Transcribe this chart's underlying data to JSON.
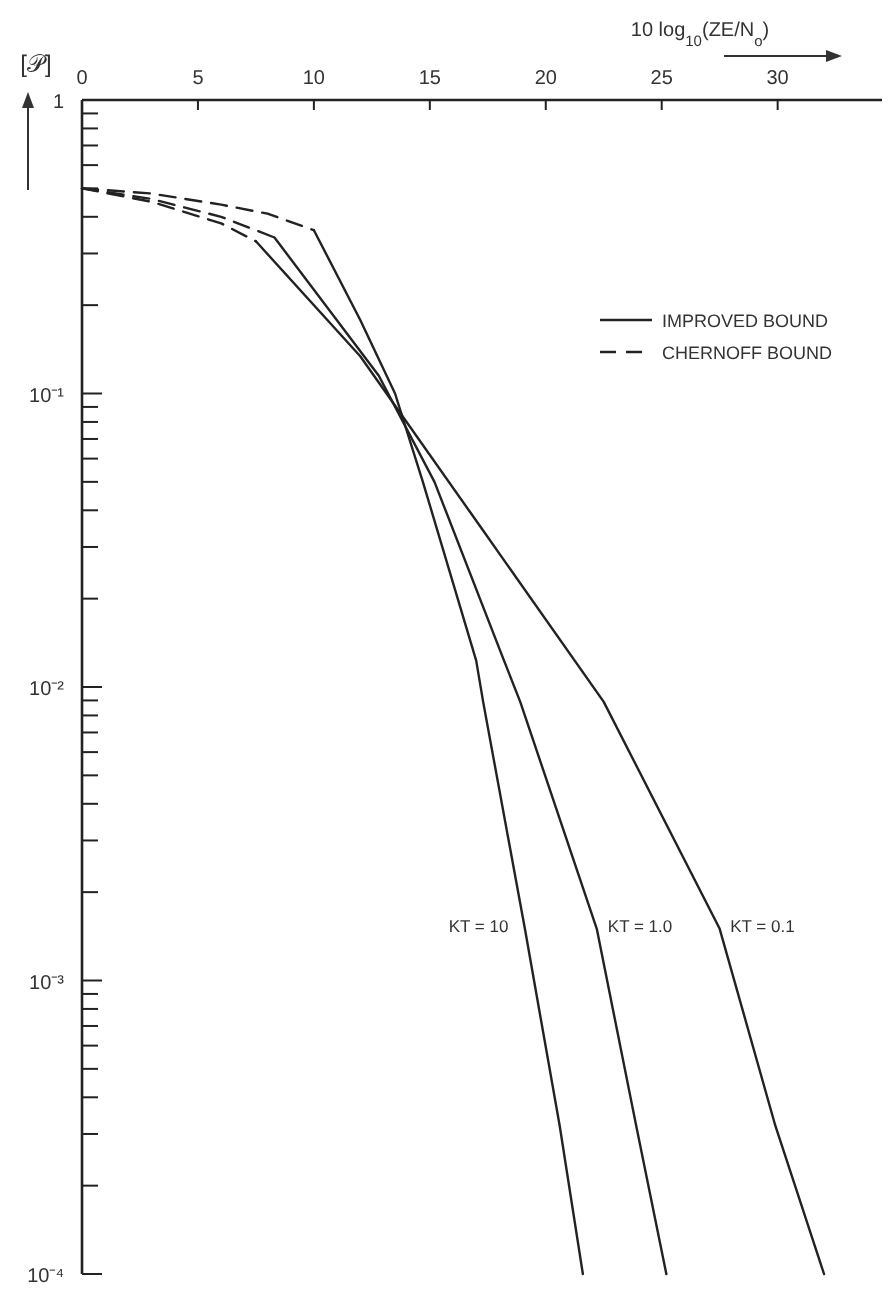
{
  "chart_data": {
    "type": "line",
    "xlabel": "10 log$_{10}$(ZE/N$_{o}$)",
    "ylabel": "[𝒫]",
    "log": "y",
    "xlim": [
      0,
      34.5
    ],
    "xticks": [
      0,
      5,
      10,
      15,
      20,
      25,
      30
    ],
    "ylim": [
      0.0001,
      1
    ],
    "yticks": [
      {
        "value": 1,
        "label": "1"
      },
      {
        "value": 0.9,
        "label": null
      },
      {
        "value": 0.8,
        "label": null
      },
      {
        "value": 0.7,
        "label": null
      },
      {
        "value": 0.6,
        "label": null
      },
      {
        "value": 0.5,
        "label": null
      },
      {
        "value": 0.4,
        "label": null
      },
      {
        "value": 0.3,
        "label": null
      },
      {
        "value": 0.2,
        "label": null
      },
      {
        "value": 0.1,
        "label": "10⁻¹"
      },
      {
        "value": 0.09,
        "label": null
      },
      {
        "value": 0.08,
        "label": null
      },
      {
        "value": 0.07,
        "label": null
      },
      {
        "value": 0.06,
        "label": null
      },
      {
        "value": 0.05,
        "label": null
      },
      {
        "value": 0.04,
        "label": null
      },
      {
        "value": 0.03,
        "label": null
      },
      {
        "value": 0.02,
        "label": null
      },
      {
        "value": 0.01,
        "label": "10⁻²"
      },
      {
        "value": 0.009,
        "label": null
      },
      {
        "value": 0.008,
        "label": null
      },
      {
        "value": 0.007,
        "label": null
      },
      {
        "value": 0.006,
        "label": null
      },
      {
        "value": 0.005,
        "label": null
      },
      {
        "value": 0.004,
        "label": null
      },
      {
        "value": 0.003,
        "label": null
      },
      {
        "value": 0.002,
        "label": null
      },
      {
        "value": 0.001,
        "label": "10⁻³"
      },
      {
        "value": 0.0009,
        "label": null
      },
      {
        "value": 0.0008,
        "label": null
      },
      {
        "value": 0.0007,
        "label": null
      },
      {
        "value": 0.0006,
        "label": null
      },
      {
        "value": 0.0005,
        "label": null
      },
      {
        "value": 0.0004,
        "label": null
      },
      {
        "value": 0.0003,
        "label": null
      },
      {
        "value": 0.0002,
        "label": null
      },
      {
        "value": 0.0001,
        "label": "10⁻⁴"
      }
    ],
    "legend": "top right",
    "grid": false,
    "marker": "none",
    "series": [
      {
        "name": "IMPROVED BOUND",
        "color": "#222222",
        "line_style": "solid",
        "x": [
          10,
          12,
          13.5,
          14.7,
          17,
          17.3,
          19.1,
          20.6,
          21.6
        ],
        "values": [
          0.36,
          0.178,
          0.1,
          0.05,
          0.0123,
          0.0089,
          0.0015,
          0.00032,
          0.0001
        ]
      },
      {
        "color": "#222222",
        "line_style": "solid",
        "x": [
          8.3,
          12.8,
          15.2,
          18.2,
          18.9,
          22.2,
          23.9,
          25.2
        ],
        "values": [
          0.34,
          0.115,
          0.05,
          0.0123,
          0.0089,
          0.0015,
          0.00032,
          0.0001
        ]
      },
      {
        "color": "#222222",
        "line_style": "solid",
        "x": [
          7.5,
          12,
          17.2,
          22.5,
          27.5,
          29.9,
          32
        ],
        "values": [
          0.33,
          0.134,
          0.035,
          0.0089,
          0.0015,
          0.00032,
          0.0001
        ]
      },
      {
        "name": "CHERNOFF BOUND",
        "color": "#222222",
        "line_style": "dashed",
        "x": [
          0,
          3,
          6,
          8,
          10
        ],
        "values": [
          0.5,
          0.48,
          0.44,
          0.41,
          0.36
        ]
      },
      {
        "color": "#222222",
        "line_style": "dashed",
        "x": [
          0,
          3,
          6,
          8.3
        ],
        "values": [
          0.5,
          0.46,
          0.4,
          0.34
        ]
      },
      {
        "color": "#222222",
        "line_style": "dashed",
        "x": [
          0,
          3,
          6,
          7.5
        ],
        "values": [
          0.5,
          0.45,
          0.38,
          0.33
        ]
      }
    ],
    "annotations": [
      "KT = 10",
      "KT = 1.0",
      "KT = 0.1"
    ]
  }
}
